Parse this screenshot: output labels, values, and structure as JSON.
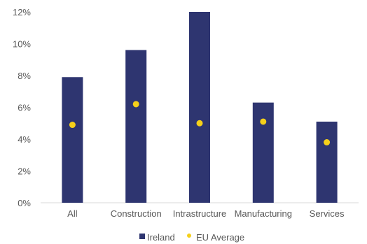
{
  "chart_data": {
    "type": "bar",
    "categories": [
      "All",
      "Construction",
      "Intrastructure",
      "Manufacturing",
      "Services"
    ],
    "series": [
      {
        "name": "Ireland",
        "kind": "bar",
        "color": "#2e3570",
        "values": [
          7.9,
          9.6,
          12.0,
          6.3,
          5.1
        ]
      },
      {
        "name": "EU Average",
        "kind": "point",
        "color": "#f5d01a",
        "values": [
          4.9,
          6.2,
          5.0,
          5.1,
          3.8
        ]
      }
    ],
    "ylim": [
      0,
      12
    ],
    "yticks": [
      0,
      2,
      4,
      6,
      8,
      10,
      12
    ],
    "ytick_labels": [
      "0%",
      "2%",
      "4%",
      "6%",
      "8%",
      "10%",
      "12%"
    ],
    "legend_position": "bottom",
    "grid": false,
    "axis_color": "#d9d9d9"
  }
}
